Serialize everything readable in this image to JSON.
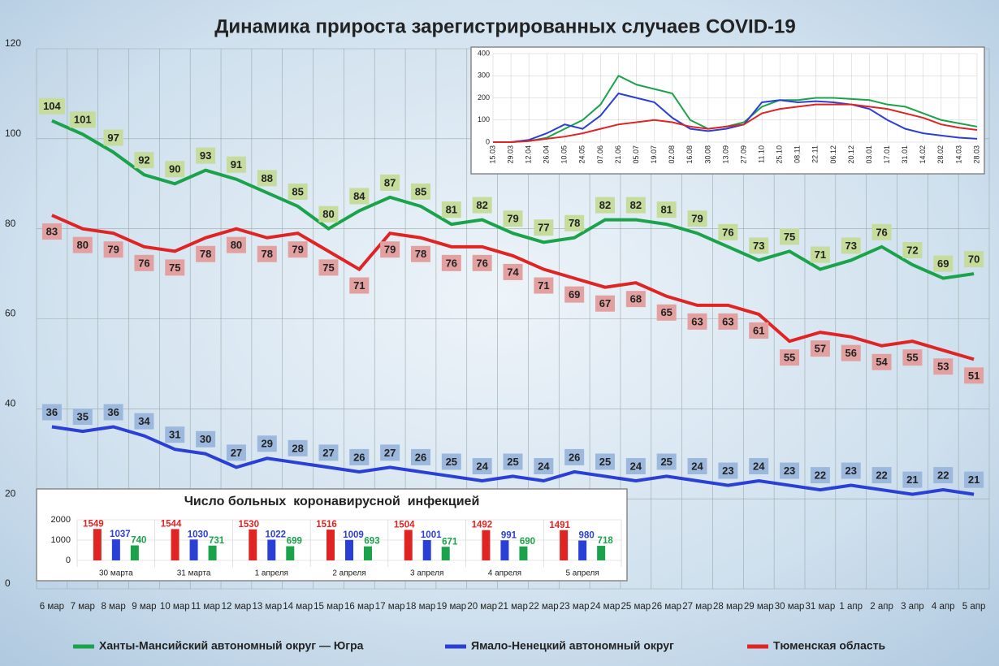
{
  "chart_data": [
    {
      "type": "line",
      "title": "Динамика прироста зарегистрированных случаев COVID-19",
      "categories": [
        "6 мар",
        "7 мар",
        "8 мар",
        "9 мар",
        "10 мар",
        "11 мар",
        "12 мар",
        "13 мар",
        "14 мар",
        "15 мар",
        "16 мар",
        "17 мар",
        "18 мар",
        "19 мар",
        "20 мар",
        "21 мар",
        "22 мар",
        "23 мар",
        "24 мар",
        "25 мар",
        "26 мар",
        "27 мар",
        "28 мар",
        "29 мар",
        "30 мар",
        "31 мар",
        "1 апр",
        "2 апр",
        "3 апр",
        "4 апр",
        "5 апр"
      ],
      "series": [
        {
          "name": "Ханты-Мансийский автономный округ — Югра",
          "color": "#1aa34a",
          "label_color": "#c5dc9c",
          "values": [
            104,
            101,
            97,
            92,
            90,
            93,
            91,
            88,
            85,
            80,
            84,
            87,
            85,
            81,
            82,
            79,
            77,
            78,
            82,
            82,
            81,
            79,
            76,
            73,
            75,
            71,
            73,
            76,
            72,
            69,
            70
          ]
        },
        {
          "name": "Ямало-Ненецкий автономный округ",
          "color": "#2a3fd6",
          "label_color": "#9db8dd",
          "values": [
            36,
            35,
            36,
            34,
            31,
            30,
            27,
            29,
            28,
            27,
            26,
            27,
            26,
            25,
            24,
            25,
            24,
            26,
            25,
            24,
            25,
            24,
            23,
            24,
            23,
            22,
            23,
            22,
            21,
            22,
            21
          ]
        },
        {
          "name": "Тюменская область",
          "color": "#e02424",
          "label_color": "#e3a0a0",
          "values": [
            83,
            80,
            79,
            76,
            75,
            78,
            80,
            78,
            79,
            75,
            71,
            79,
            78,
            76,
            76,
            74,
            71,
            69,
            67,
            68,
            65,
            63,
            63,
            61,
            55,
            57,
            56,
            54,
            55,
            53,
            51
          ]
        }
      ],
      "ylim": [
        0,
        120
      ],
      "yticks": [
        0,
        20,
        40,
        60,
        80,
        100,
        120
      ],
      "grid": true
    },
    {
      "type": "line",
      "categories": [
        "15.03",
        "29.03",
        "12.04",
        "26.04",
        "10.05",
        "24.05",
        "07.06",
        "21.06",
        "05.07",
        "19.07",
        "02.08",
        "16.08",
        "30.08",
        "13.09",
        "27.09",
        "11.10",
        "25.10",
        "08.11",
        "22.11",
        "06.12",
        "20.12",
        "03.01",
        "17.01",
        "31.01",
        "14.02",
        "28.02",
        "14.03",
        "28.03"
      ],
      "series": [
        {
          "color": "#1aa34a",
          "values": [
            0,
            0,
            5,
            20,
            60,
            100,
            170,
            300,
            260,
            240,
            220,
            100,
            60,
            70,
            90,
            160,
            190,
            190,
            200,
            200,
            195,
            190,
            170,
            160,
            130,
            100,
            85,
            70
          ]
        },
        {
          "color": "#2a3fd6",
          "values": [
            0,
            0,
            10,
            40,
            80,
            60,
            120,
            220,
            200,
            180,
            110,
            60,
            50,
            60,
            80,
            180,
            190,
            180,
            185,
            180,
            170,
            150,
            100,
            60,
            40,
            30,
            20,
            15
          ]
        },
        {
          "color": "#e02424",
          "values": [
            0,
            0,
            5,
            15,
            25,
            40,
            60,
            80,
            90,
            100,
            90,
            70,
            60,
            70,
            80,
            130,
            150,
            160,
            170,
            170,
            170,
            160,
            150,
            130,
            110,
            80,
            65,
            55
          ]
        }
      ],
      "ylim": [
        0,
        400
      ],
      "yticks": [
        0,
        100,
        200,
        300,
        400
      ],
      "grid": true
    },
    {
      "type": "bar",
      "title": "Число больных  коронавирусной  инфекцией",
      "categories": [
        "30 марта",
        "31 марта",
        "1 апреля",
        "2 апреля",
        "3 апреля",
        "4 апреля",
        "5 апреля"
      ],
      "series": [
        {
          "color": "#e02424",
          "values": [
            1549,
            1544,
            1530,
            1516,
            1504,
            1492,
            1491
          ]
        },
        {
          "color": "#2a3fd6",
          "values": [
            1037,
            1030,
            1022,
            1009,
            1001,
            991,
            980
          ]
        },
        {
          "color": "#1aa34a",
          "values": [
            740,
            731,
            699,
            693,
            671,
            690,
            718
          ]
        }
      ],
      "ylim": [
        0,
        2000
      ],
      "yticks": [
        0,
        1000,
        2000
      ],
      "grid": true
    }
  ]
}
